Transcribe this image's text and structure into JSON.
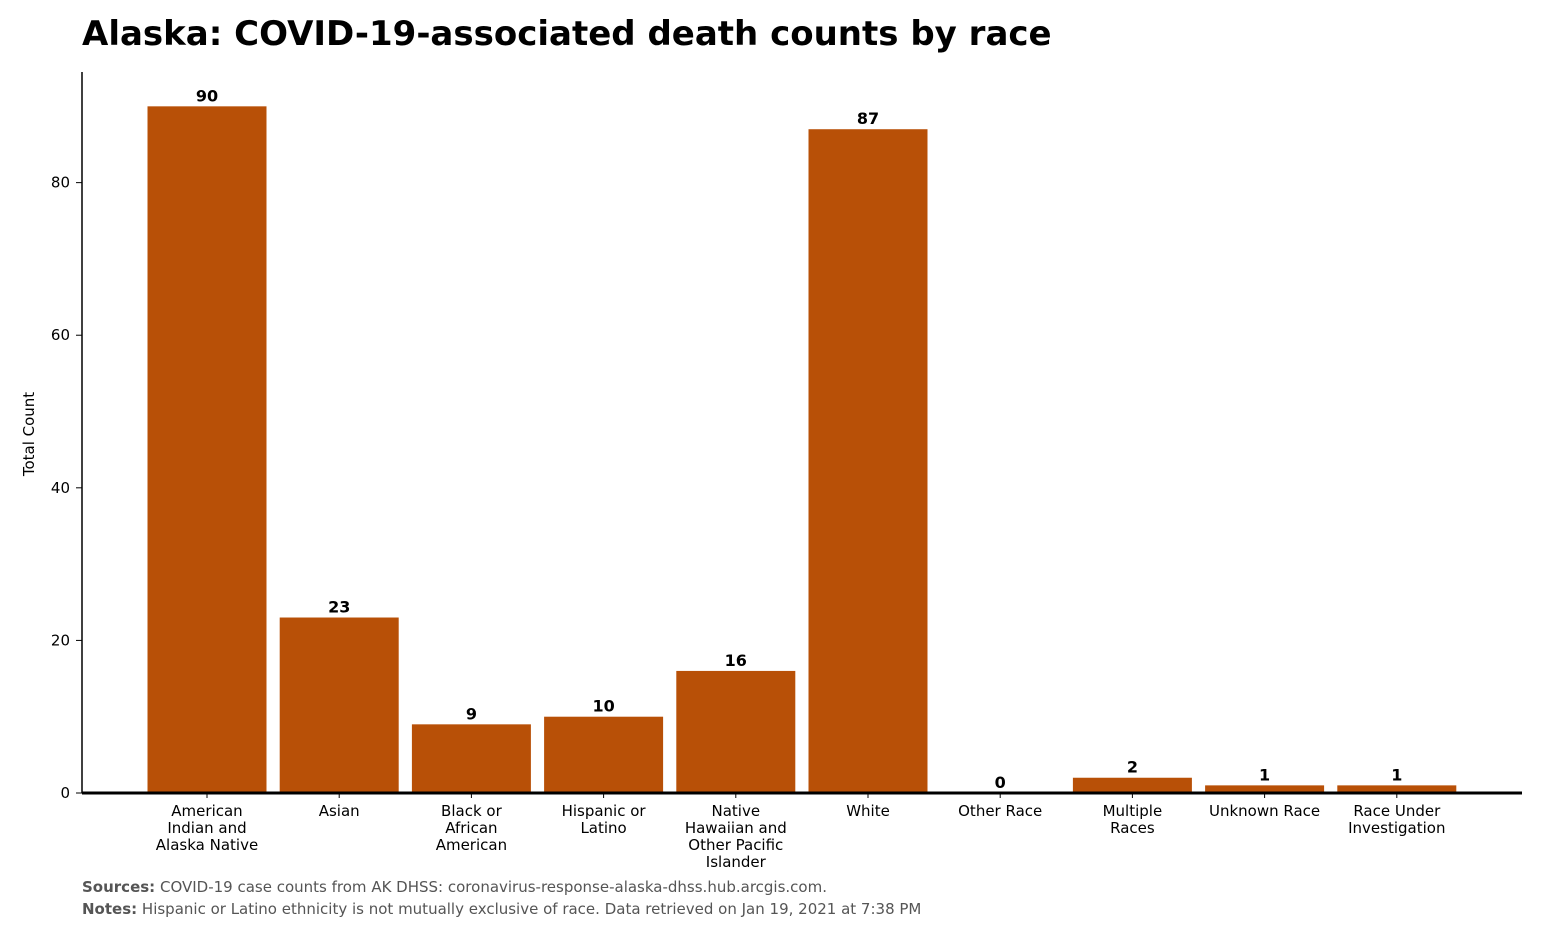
{
  "chart_data": {
    "type": "bar",
    "title": "Alaska: COVID-19-associated death counts by race",
    "xlabel": "",
    "ylabel": "Total Count",
    "categories": [
      "American Indian and Alaska Native",
      "Asian",
      "Black or African American",
      "Hispanic or Latino",
      "Native Hawaiian and Other Pacific Islander",
      "White",
      "Other Race",
      "Multiple Races",
      "Unknown Race",
      "Race Under Investigation"
    ],
    "category_lines": [
      [
        "American",
        "Indian and",
        "Alaska Native"
      ],
      [
        "Asian"
      ],
      [
        "Black or",
        "African",
        "American"
      ],
      [
        "Hispanic or",
        "Latino"
      ],
      [
        "Native",
        "Hawaiian and",
        "Other Pacific",
        "Islander"
      ],
      [
        "White"
      ],
      [
        "Other Race"
      ],
      [
        "Multiple",
        "Races"
      ],
      [
        "Unknown Race"
      ],
      [
        "Race Under",
        "Investigation"
      ]
    ],
    "values": [
      90,
      23,
      9,
      10,
      16,
      87,
      0,
      2,
      1,
      1
    ],
    "ylim": [
      0,
      94.5
    ],
    "yticks": [
      0,
      20,
      40,
      60,
      80
    ],
    "grid": false,
    "bar_color": "#b85007"
  },
  "footer": {
    "sources_label": "Sources:",
    "sources_text": "COVID-19 case counts from AK DHSS: coronavirus-response-alaska-dhss.hub.arcgis.com.",
    "notes_label": "Notes:",
    "notes_text": "Hispanic or Latino ethnicity is not mutually exclusive of race. Data retrieved on Jan 19, 2021 at 7:38 PM"
  }
}
